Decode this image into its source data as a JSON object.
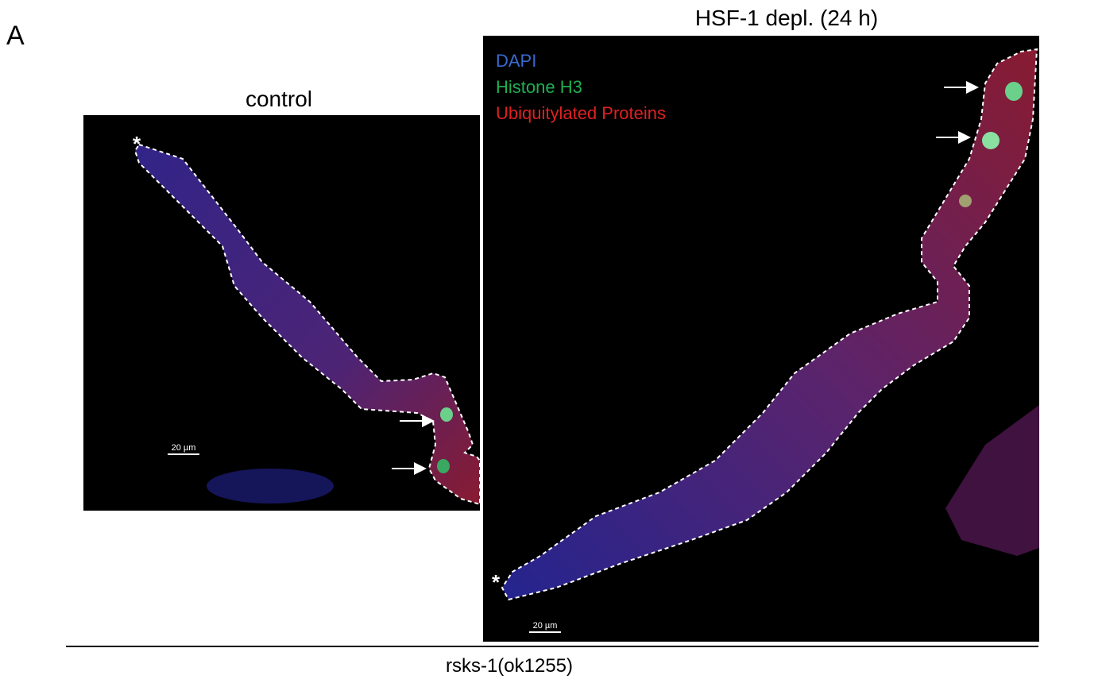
{
  "panel_label": "A",
  "panels": [
    {
      "title": "control",
      "scale_bar": "20 µm",
      "marker": "*"
    },
    {
      "title": "HSF-1 depl. (24 h)",
      "scale_bar": "20 µm",
      "marker": "*",
      "legend": [
        "DAPI",
        "Histone H3",
        "Ubiquitylated Proteins"
      ]
    }
  ],
  "footer": "rsks-1(ok1255)"
}
